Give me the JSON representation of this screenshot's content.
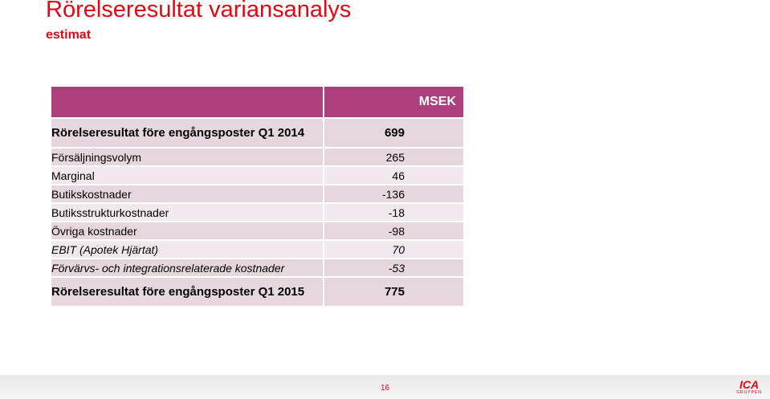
{
  "slide": {
    "title": "Rörelseresultat variansanalys",
    "subtitle": "estimat",
    "page_number": "16"
  },
  "table": {
    "unit_header": "MSEK",
    "opening": {
      "label": "Rörelseresultat före engångsposter Q1 2014",
      "value": "699"
    },
    "rows": [
      {
        "label": "Försäljningsvolym",
        "value": "265"
      },
      {
        "label": "Marginal",
        "value": "46"
      },
      {
        "label": "Butikskostnader",
        "value": "-136"
      },
      {
        "label": "Butiksstrukturkostnader",
        "value": "-18"
      },
      {
        "label": "Övriga kostnader",
        "value": "-98"
      },
      {
        "label": "EBIT (Apotek Hjärtat)",
        "value": "70"
      },
      {
        "label": "Förvärvs- och integrationsrelaterade kostnader",
        "value": "-53"
      }
    ],
    "closing": {
      "label": "Rörelseresultat före engångsposter Q1 2015",
      "value": "775"
    }
  },
  "logo": {
    "mark": "ICA",
    "sub": "GRUPPEN"
  },
  "colors": {
    "title": "#e30613",
    "header_bar": "#ae3f7e",
    "row_dark": "#e6d6dd",
    "row_light": "#f1e9ed"
  }
}
